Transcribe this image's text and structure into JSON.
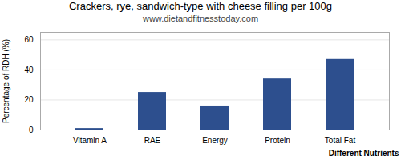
{
  "chart_data": {
    "type": "bar",
    "title": "Crackers, rye, sandwich-type with cheese filling per 100g",
    "subtitle": "www.dietandfitnesstoday.com",
    "xlabel": "Different Nutrients",
    "ylabel": "Percentage of RDH (%)",
    "categories": [
      "Vitamin A",
      "RAE",
      "Energy",
      "Protein",
      "Total Fat"
    ],
    "values": [
      1,
      25,
      16,
      34,
      47
    ],
    "color": "#2d4f8e",
    "ylim": [
      0,
      65
    ],
    "yticks": [
      0,
      20,
      40,
      60
    ],
    "grid": true
  }
}
